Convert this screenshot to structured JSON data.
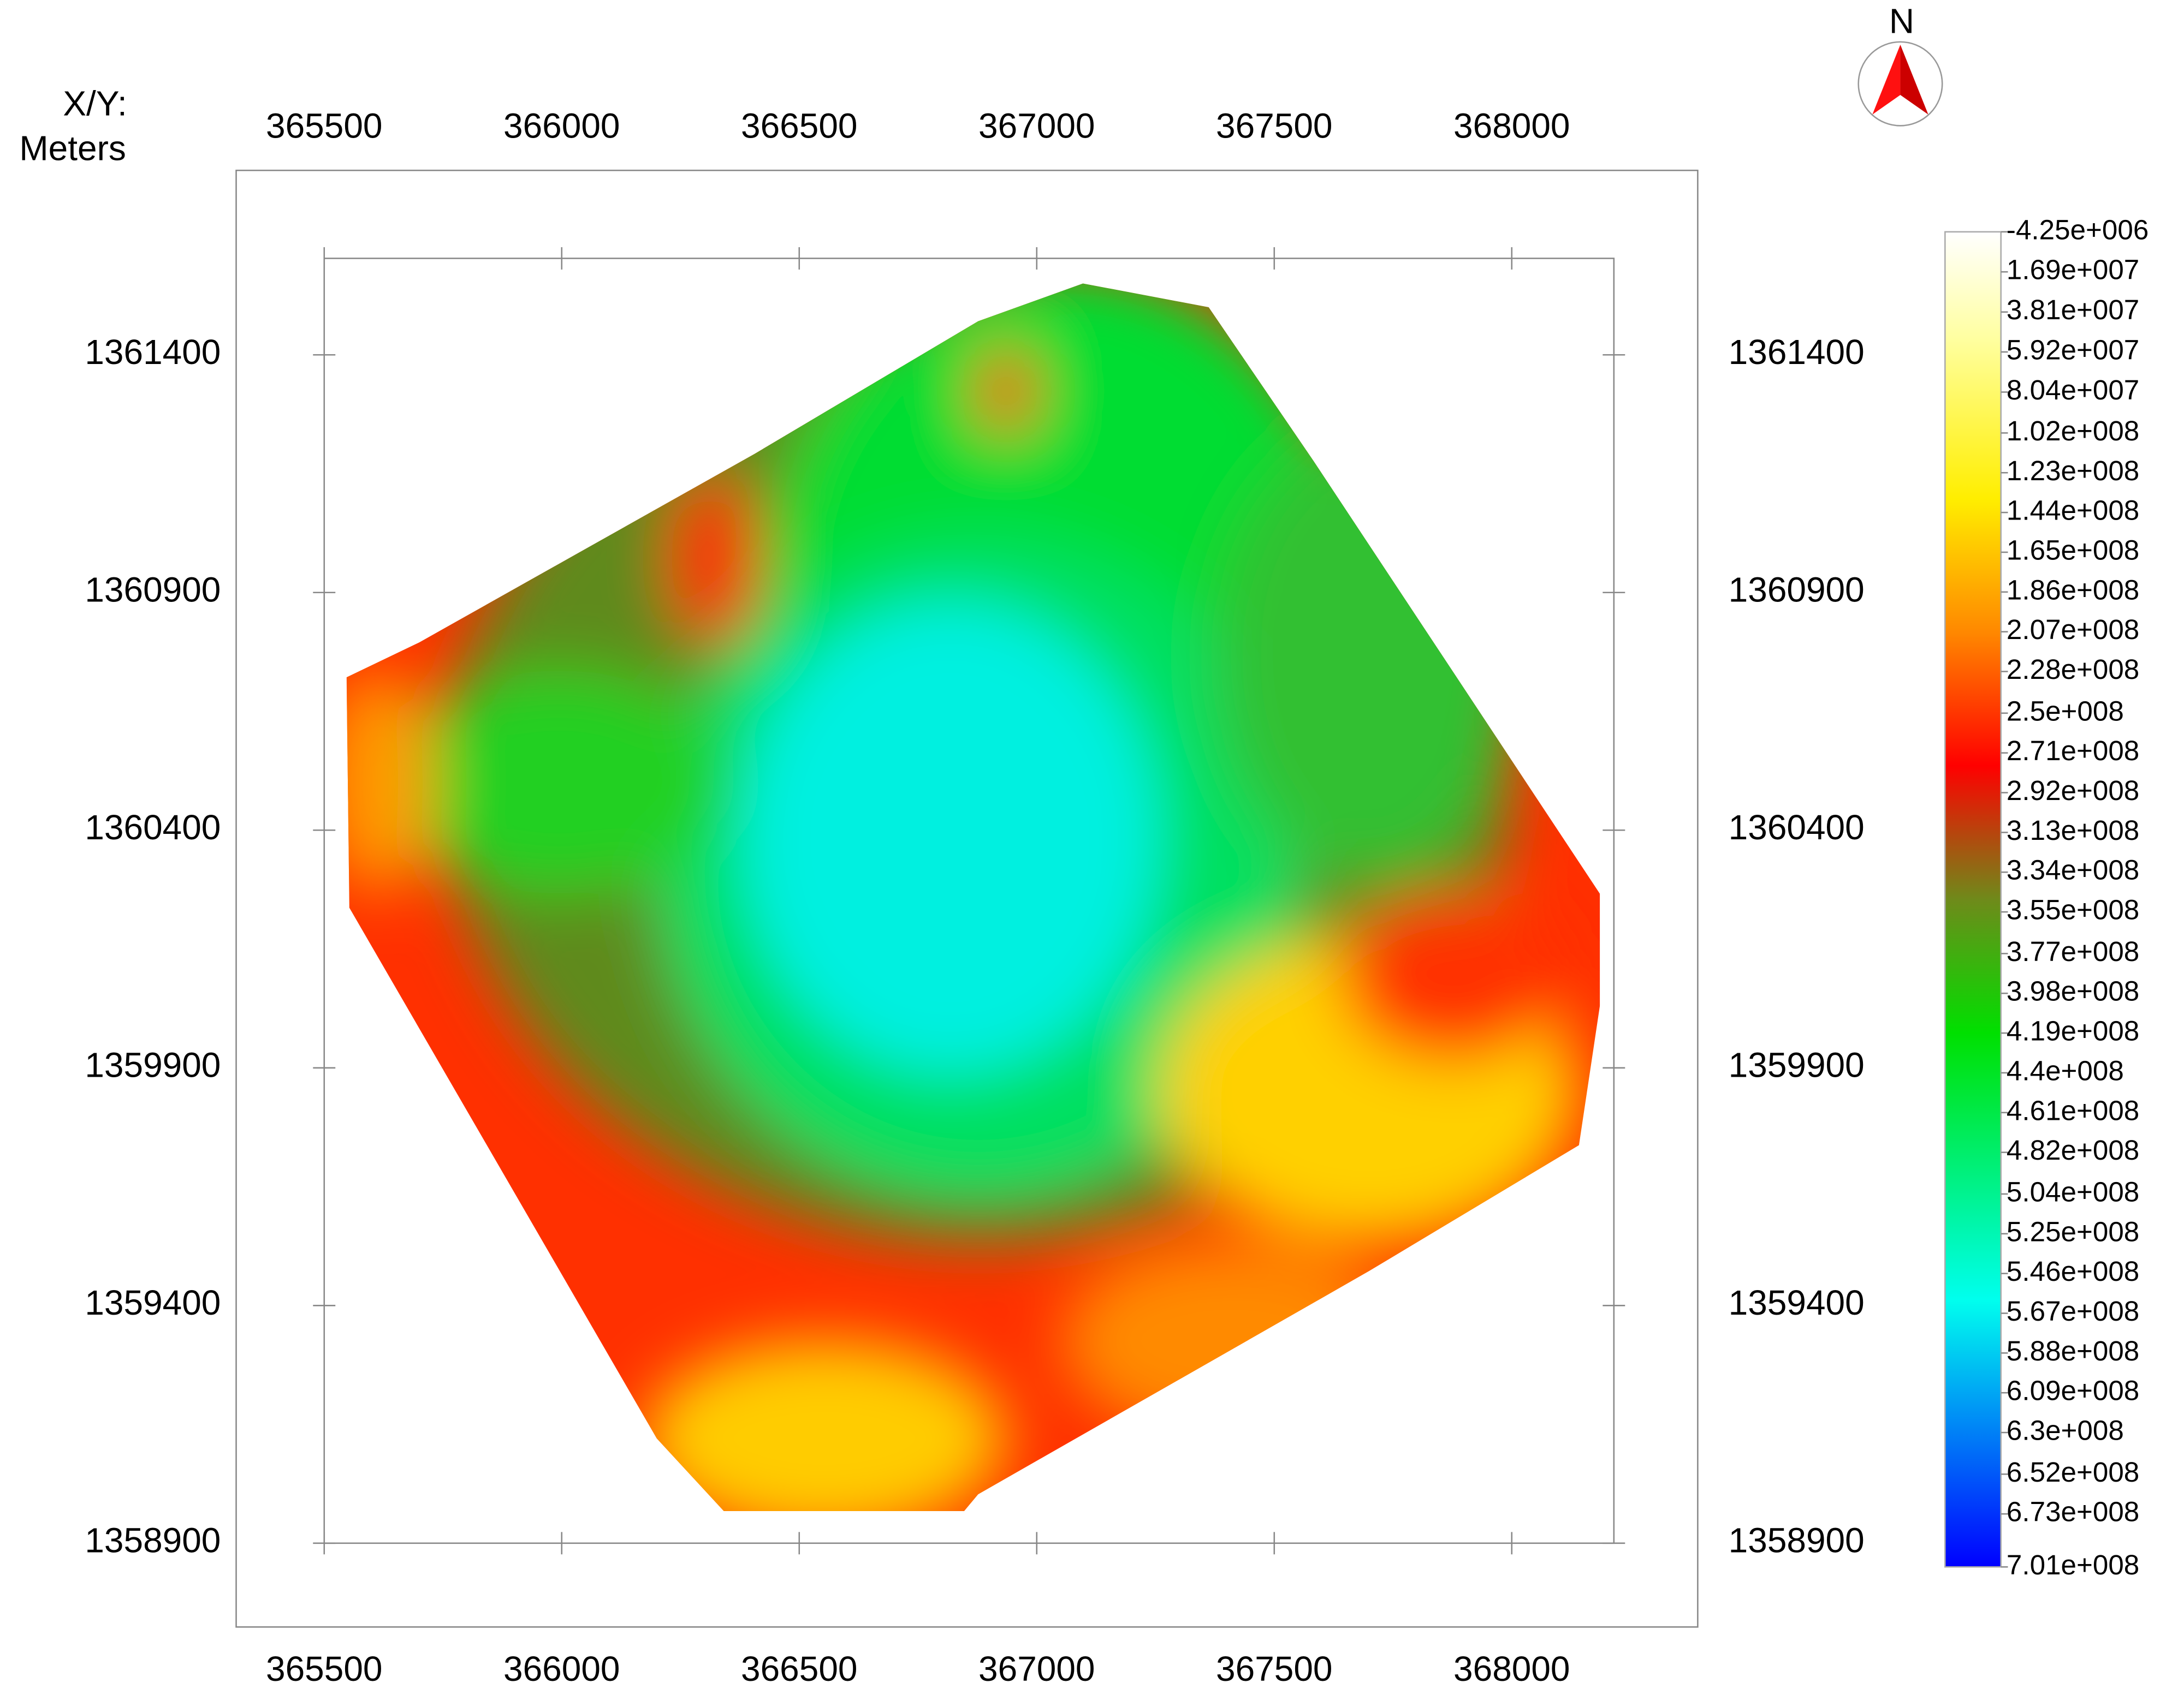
{
  "chart_data": {
    "type": "contour",
    "axis_label": "X/Y:",
    "units": "Meters",
    "north_label": "N",
    "xlim": [
      365500,
      368215
    ],
    "ylim": [
      1358900,
      1361603
    ],
    "xticks": [
      365500,
      366000,
      366500,
      367000,
      367500,
      368000
    ],
    "yticks": [
      1358900,
      1359400,
      1359900,
      1360400,
      1360900,
      1361400
    ],
    "colorbar": {
      "lim": [
        -4250000,
        701000000
      ],
      "ticks": [
        {
          "value": -4250000,
          "label": "-4.25e+006"
        },
        {
          "value": 16900000,
          "label": "1.69e+007"
        },
        {
          "value": 38100000,
          "label": "3.81e+007"
        },
        {
          "value": 59200000,
          "label": "5.92e+007"
        },
        {
          "value": 80400000,
          "label": "8.04e+007"
        },
        {
          "value": 102000000,
          "label": "1.02e+008"
        },
        {
          "value": 123000000,
          "label": "1.23e+008"
        },
        {
          "value": 144000000,
          "label": "1.44e+008"
        },
        {
          "value": 165000000,
          "label": "1.65e+008"
        },
        {
          "value": 186000000,
          "label": "1.86e+008"
        },
        {
          "value": 207000000,
          "label": "2.07e+008"
        },
        {
          "value": 228000000,
          "label": "2.28e+008"
        },
        {
          "value": 250000000,
          "label": "2.5e+008"
        },
        {
          "value": 271000000,
          "label": "2.71e+008"
        },
        {
          "value": 292000000,
          "label": "2.92e+008"
        },
        {
          "value": 313000000,
          "label": "3.13e+008"
        },
        {
          "value": 334000000,
          "label": "3.34e+008"
        },
        {
          "value": 355000000,
          "label": "3.55e+008"
        },
        {
          "value": 377000000,
          "label": "3.77e+008"
        },
        {
          "value": 398000000,
          "label": "3.98e+008"
        },
        {
          "value": 419000000,
          "label": "4.19e+008"
        },
        {
          "value": 440000000,
          "label": "4.4e+008"
        },
        {
          "value": 461000000,
          "label": "4.61e+008"
        },
        {
          "value": 482000000,
          "label": "4.82e+008"
        },
        {
          "value": 504000000,
          "label": "5.04e+008"
        },
        {
          "value": 525000000,
          "label": "5.25e+008"
        },
        {
          "value": 546000000,
          "label": "5.46e+008"
        },
        {
          "value": 567000000,
          "label": "5.67e+008"
        },
        {
          "value": 588000000,
          "label": "5.88e+008"
        },
        {
          "value": 609000000,
          "label": "6.09e+008"
        },
        {
          "value": 630000000,
          "label": "6.3e+008"
        },
        {
          "value": 652000000,
          "label": "6.52e+008"
        },
        {
          "value": 673000000,
          "label": "6.73e+008"
        },
        {
          "value": 701000000,
          "label": "7.01e+008"
        }
      ]
    }
  }
}
